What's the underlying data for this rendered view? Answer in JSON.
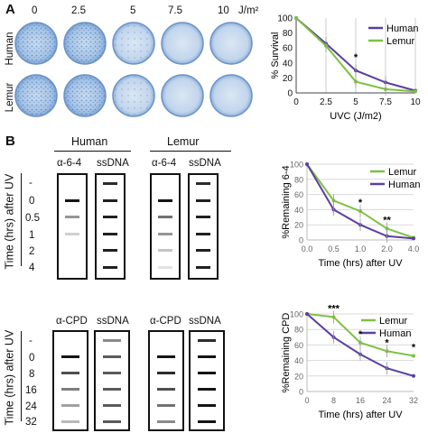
{
  "panel_a": {
    "letter": "A",
    "doses": [
      "0",
      "2.5",
      "5",
      "7.5",
      "10"
    ],
    "dose_unit": "J/m²",
    "rows": [
      "Human",
      "Lemur"
    ]
  },
  "panel_b": {
    "letter": "B",
    "groups": [
      "Human",
      "Lemur"
    ],
    "top_columns": [
      "α-6-4",
      "ssDNA",
      "α-6-4",
      "ssDNA"
    ],
    "bottom_columns": [
      "α-CPD",
      "ssDNA",
      "α-CPD",
      "ssDNA"
    ],
    "time_axis_label": "Time (hrs) after UV",
    "top_times": [
      "-",
      "0",
      "0.5",
      "1",
      "2",
      "4"
    ],
    "bottom_times": [
      "-",
      "0",
      "8",
      "16",
      "24",
      "32"
    ]
  },
  "colors": {
    "human": "#5b3fa0",
    "lemur": "#7cc142"
  },
  "chart_data": [
    {
      "type": "line",
      "ylabel": "% Survival",
      "xlabel": "UVC (J/m2)",
      "x": [
        0,
        2.5,
        5,
        7.5,
        10
      ],
      "x_ticks": [
        "0",
        "2.5",
        "5",
        "7.5",
        "10"
      ],
      "y_ticks": [
        "0",
        "20",
        "40",
        "60",
        "80",
        "100"
      ],
      "ylim": [
        0,
        100
      ],
      "legend_position": "top-right",
      "series": [
        {
          "name": "Human",
          "values": [
            100,
            66,
            30,
            14,
            3
          ]
        },
        {
          "name": "Lemur",
          "values": [
            100,
            63,
            15,
            5,
            2
          ]
        }
      ],
      "annotations": [
        "*"
      ]
    },
    {
      "type": "line",
      "ylabel": "%Remaining 6-4",
      "xlabel": "Time (hrs) after UV",
      "x_ticks": [
        "0.0",
        "0.5",
        "1.0",
        "2.0",
        "4.0"
      ],
      "y_ticks": [
        "0",
        "20",
        "40",
        "60",
        "80",
        "100"
      ],
      "ylim": [
        0,
        100
      ],
      "legend_position": "top-right",
      "series": [
        {
          "name": "Lemur",
          "values": [
            100,
            52,
            38,
            15,
            3
          ]
        },
        {
          "name": "Human",
          "values": [
            100,
            40,
            20,
            5,
            2
          ]
        }
      ],
      "annotations": [
        "*",
        "**"
      ]
    },
    {
      "type": "line",
      "ylabel": "%Remaining CPD",
      "xlabel": "Time (hrs) after UV",
      "x_ticks": [
        "0",
        "8",
        "16",
        "24",
        "32"
      ],
      "y_ticks": [
        "0",
        "20",
        "40",
        "60",
        "80",
        "100"
      ],
      "ylim": [
        0,
        100
      ],
      "legend_position": "top-right",
      "series": [
        {
          "name": "Lemur",
          "values": [
            100,
            96,
            63,
            52,
            46
          ]
        },
        {
          "name": "Human",
          "values": [
            100,
            70,
            48,
            30,
            20
          ]
        }
      ],
      "annotations": [
        "***",
        "*",
        "*",
        "*"
      ]
    }
  ]
}
